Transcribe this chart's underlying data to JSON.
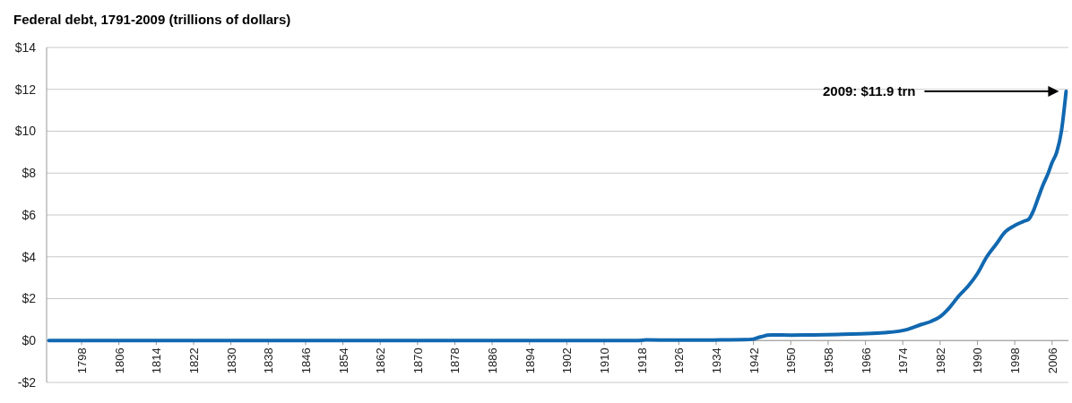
{
  "chart_data": {
    "type": "line",
    "title": "Federal debt, 1791-2009 (trillions of dollars)",
    "series": [
      {
        "color": "#1168b0",
        "x": [
          1791,
          1830,
          1870,
          1900,
          1916,
          1917,
          1919,
          1925,
          1930,
          1935,
          1940,
          1942,
          1943,
          1944,
          1945,
          1946,
          1950,
          1955,
          1960,
          1965,
          1970,
          1975,
          1978,
          1980,
          1982,
          1984,
          1986,
          1988,
          1990,
          1992,
          1994,
          1996,
          1998,
          2000,
          2001,
          2002,
          2003,
          2004,
          2005,
          2006,
          2007,
          2008,
          2009
        ],
        "values": [
          0,
          0,
          0,
          0,
          0,
          0,
          0.03,
          0.02,
          0.02,
          0.03,
          0.04,
          0.07,
          0.14,
          0.2,
          0.26,
          0.27,
          0.26,
          0.27,
          0.29,
          0.32,
          0.37,
          0.53,
          0.77,
          0.91,
          1.14,
          1.57,
          2.13,
          2.6,
          3.2,
          4.0,
          4.6,
          5.2,
          5.5,
          5.7,
          5.8,
          6.2,
          6.8,
          7.4,
          7.9,
          8.5,
          9.0,
          10.0,
          11.9
        ]
      }
    ],
    "xlim": [
      1790.5,
      2009.5
    ],
    "xticks": [
      1798,
      1806,
      1814,
      1822,
      1830,
      1838,
      1846,
      1854,
      1862,
      1870,
      1878,
      1886,
      1894,
      1902,
      1910,
      1918,
      1926,
      1934,
      1942,
      1950,
      1958,
      1966,
      1974,
      1982,
      1990,
      1998,
      2006
    ],
    "ylim": [
      -2,
      14
    ],
    "yticks": [
      {
        "value": -2,
        "label": "-$2"
      },
      {
        "value": 0,
        "label": "$0"
      },
      {
        "value": 2,
        "label": "$2"
      },
      {
        "value": 4,
        "label": "$4"
      },
      {
        "value": 6,
        "label": "$6"
      },
      {
        "value": 8,
        "label": "$8"
      },
      {
        "value": 10,
        "label": "$10"
      },
      {
        "value": 12,
        "label": "$12"
      },
      {
        "value": 14,
        "label": "$14"
      }
    ],
    "grid": "y",
    "annotations": [
      "2009: $11.9 trn"
    ]
  }
}
